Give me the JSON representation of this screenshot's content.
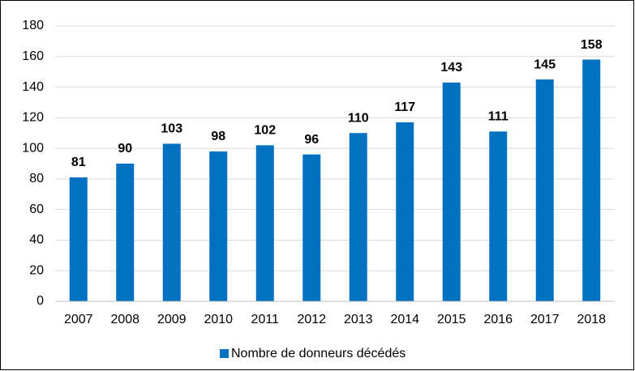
{
  "chart_data": {
    "type": "bar",
    "categories": [
      "2007",
      "2008",
      "2009",
      "2010",
      "2011",
      "2012",
      "2013",
      "2014",
      "2015",
      "2016",
      "2017",
      "2018"
    ],
    "series": [
      {
        "name": "Nombre de donneurs décédés",
        "color": "#0070c0",
        "values": [
          81,
          90,
          103,
          98,
          102,
          96,
          110,
          117,
          143,
          111,
          145,
          158
        ]
      }
    ],
    "ylim": [
      0,
      180
    ],
    "yticks": [
      0,
      20,
      40,
      60,
      80,
      100,
      120,
      140,
      160,
      180
    ],
    "grid": true,
    "legend": "bottom",
    "data_labels": true
  }
}
